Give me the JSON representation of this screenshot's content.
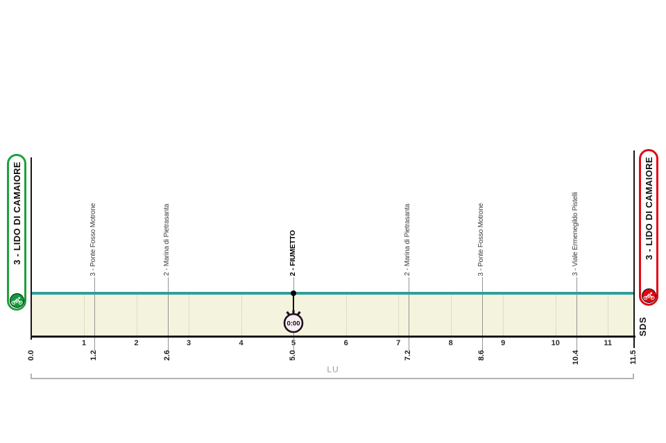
{
  "banners": {
    "start": {
      "label": "3 - LIDO DI CAMAIORE",
      "border_color": "#1BA13C",
      "circle_color": "#129A3B"
    },
    "finish": {
      "label": "3 - LIDO DI CAMAIORE",
      "border_color": "#E20613",
      "circle_color": "#DF0613"
    }
  },
  "icons": {
    "start": "cyclist-icon",
    "finish": "cyclist-icon",
    "timecheck": "stopwatch-icon"
  },
  "chart_data": {
    "type": "area",
    "x_unit": "km",
    "x_range": [
      0,
      11.5
    ],
    "series": [
      {
        "name": "elevation",
        "x": [
          0,
          11.5
        ],
        "y": [
          0,
          0
        ]
      }
    ],
    "x_ticks": [
      1,
      2,
      3,
      4,
      5,
      6,
      7,
      8,
      9,
      10,
      11
    ],
    "waypoints": [
      {
        "km": 0.0,
        "label": "3 - LIDO DI CAMAIORE",
        "kind": "start"
      },
      {
        "km": 1.2,
        "label": "3 - Ponte Fosso Motrone",
        "kind": "marker"
      },
      {
        "km": 2.6,
        "label": "2 - Marina di Pietrasanta",
        "kind": "marker"
      },
      {
        "km": 5.0,
        "label": "2 - FIUMETTO",
        "kind": "timecheck",
        "time": "0:00"
      },
      {
        "km": 7.2,
        "label": "2 - Marina di Pietrasanta",
        "kind": "marker"
      },
      {
        "km": 8.6,
        "label": "3 - Ponte Fosso Motrone",
        "kind": "marker"
      },
      {
        "km": 10.4,
        "label": "3 - Viale Ermenegildo Pistelli",
        "kind": "marker"
      },
      {
        "km": 11.5,
        "label": "3 - LIDO DI CAMAIORE",
        "kind": "finish"
      }
    ],
    "province_label": "LU",
    "watermark": "SDS",
    "line_color": "#2F9E9D",
    "fill_color": "#F4F4DE",
    "grid": "vertical-dotted-per-km",
    "legend": "none",
    "title": ""
  }
}
